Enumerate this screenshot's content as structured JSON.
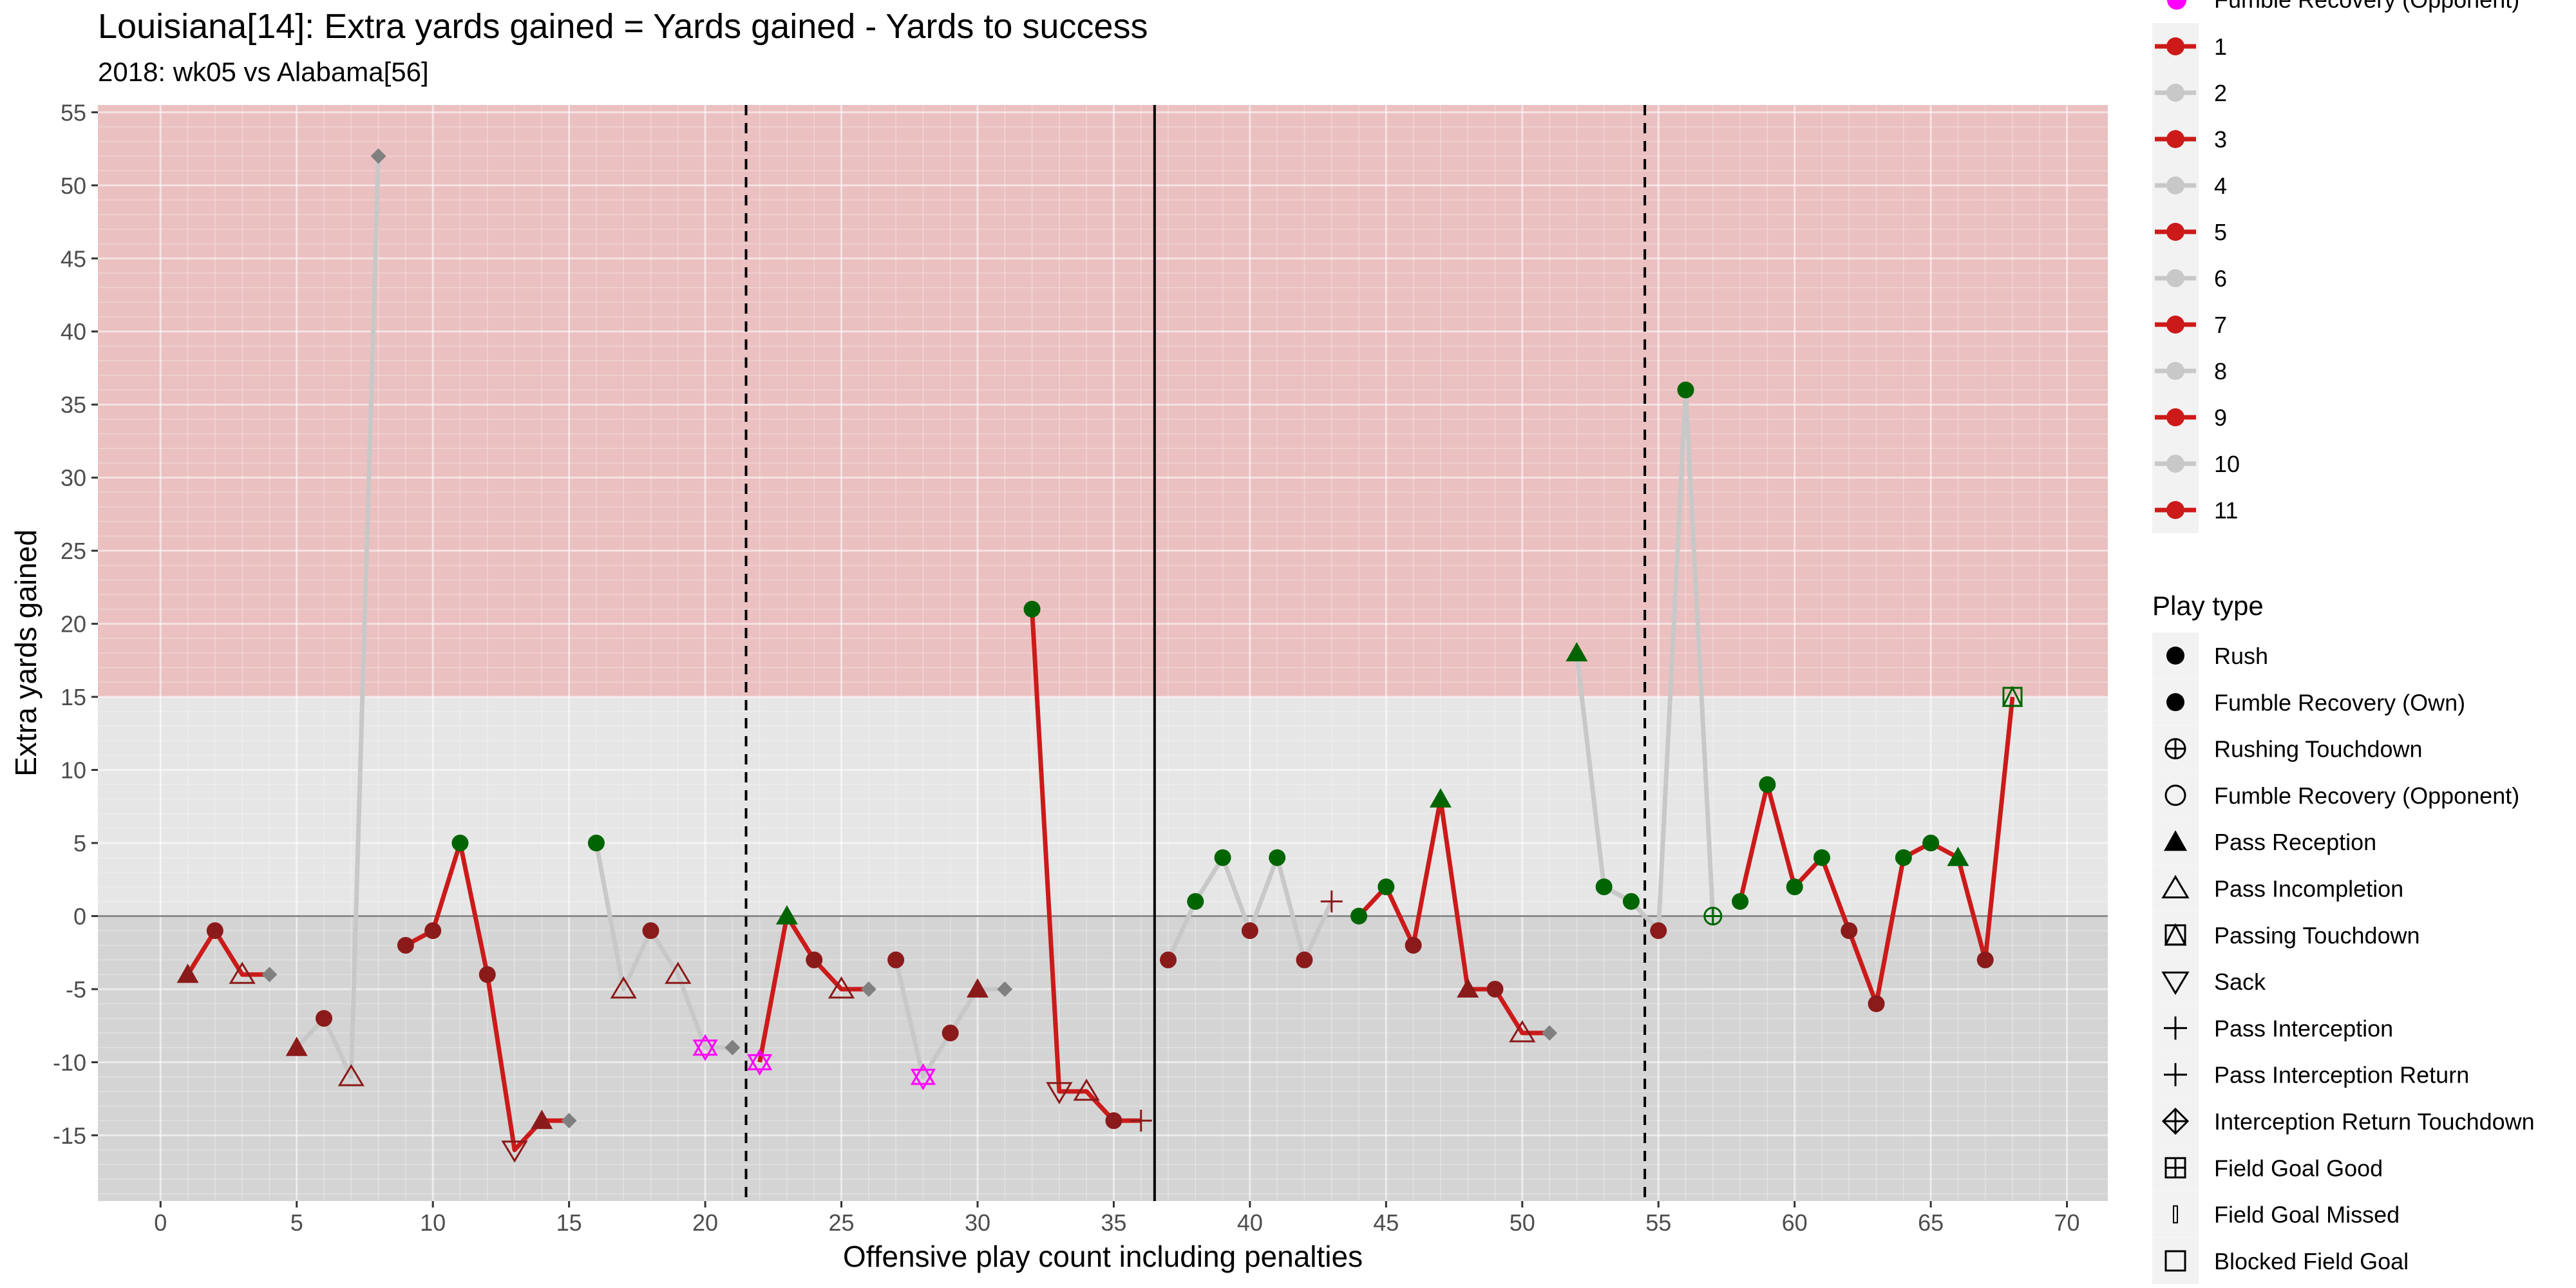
{
  "chart_data": {
    "type": "line",
    "title": "Louisiana[14]: Extra yards gained = Yards gained - Yards to success",
    "subtitle": "2018: wk05 vs Alabama[56]",
    "xlabel": "Offensive play count including penalties",
    "ylabel": "Extra yards gained",
    "xlim": [
      -2.3,
      71.5
    ],
    "ylim": [
      -19.5,
      55.5
    ],
    "x_ticks": [
      0,
      5,
      10,
      15,
      20,
      25,
      30,
      35,
      40,
      45,
      50,
      55,
      60,
      65,
      70
    ],
    "y_ticks": [
      -15,
      -10,
      -5,
      0,
      5,
      10,
      15,
      20,
      25,
      30,
      35,
      40,
      45,
      50,
      55
    ],
    "success_band_min": 15,
    "zero_line": 0,
    "quarter_lines": [
      21.5,
      54.5
    ],
    "half_line": 36.5,
    "colors": {
      "success_band": "#ebc0c0",
      "failure_band": "#d4d4d4",
      "middle_band": "#e6e6e6",
      "drive_red": "#cc1a1a",
      "drive_grey": "#c8c8c8",
      "success": "#006400",
      "fail": "#8b1a1a",
      "penalty": "#808080",
      "sack_magenta": "#ff00ff"
    },
    "series": [
      {
        "drive": 1,
        "points": [
          [
            1,
            -4,
            "pass_rec",
            "fail"
          ],
          [
            2,
            -1,
            "rush",
            "fail"
          ],
          [
            3,
            -4,
            "pass_inc",
            "fail"
          ],
          [
            4,
            -4,
            "penalty",
            "penalty"
          ]
        ]
      },
      {
        "drive": 2,
        "points": [
          [
            5,
            -9,
            "pass_rec",
            "fail"
          ],
          [
            6,
            -7,
            "rush",
            "fail"
          ],
          [
            7,
            -11,
            "pass_inc",
            "fail"
          ],
          [
            8,
            52,
            "penalty",
            "penalty"
          ]
        ]
      },
      {
        "drive": 3,
        "points": [
          [
            9,
            -2,
            "rush",
            "fail"
          ],
          [
            10,
            -1,
            "rush",
            "fail"
          ],
          [
            11,
            5,
            "rush",
            "success"
          ],
          [
            12,
            -4,
            "rush",
            "fail"
          ],
          [
            13,
            -16,
            "sack",
            "fail"
          ],
          [
            14,
            -14,
            "pass_rec",
            "fail"
          ],
          [
            15,
            -14,
            "penalty",
            "penalty"
          ]
        ]
      },
      {
        "drive": 4,
        "points": [
          [
            16,
            5,
            "rush",
            "success"
          ],
          [
            17,
            -5,
            "pass_inc",
            "fail"
          ],
          [
            18,
            -1,
            "rush",
            "fail"
          ],
          [
            19,
            -4,
            "pass_inc",
            "fail"
          ],
          [
            20,
            -9,
            "sack_star",
            "sack_magenta"
          ],
          [
            21,
            -9,
            "penalty",
            "penalty"
          ]
        ]
      },
      {
        "drive": 5,
        "points": [
          [
            22,
            -10,
            "sack_star",
            "sack_magenta"
          ],
          [
            23,
            0,
            "pass_rec",
            "success"
          ],
          [
            24,
            -3,
            "rush",
            "fail"
          ],
          [
            25,
            -5,
            "pass_inc",
            "fail"
          ],
          [
            26,
            -5,
            "penalty",
            "penalty"
          ]
        ]
      },
      {
        "drive": 6,
        "points": [
          [
            27,
            -3,
            "rush",
            "fail"
          ],
          [
            28,
            -11,
            "sack_star",
            "sack_magenta"
          ],
          [
            29,
            -8,
            "rush",
            "fail"
          ],
          [
            30,
            -5,
            "pass_rec",
            "fail"
          ],
          [
            31,
            -5,
            "penalty",
            "penalty"
          ]
        ]
      },
      {
        "drive": 7,
        "points": [
          [
            32,
            21,
            "rush",
            "success"
          ],
          [
            33,
            -12,
            "sack",
            "fail"
          ],
          [
            34,
            -12,
            "pass_inc",
            "fail"
          ],
          [
            35,
            -14,
            "rush",
            "fail"
          ],
          [
            36,
            -14,
            "plus",
            "fail"
          ]
        ]
      },
      {
        "drive": 8,
        "points": [
          [
            37,
            -3,
            "rush",
            "fail"
          ],
          [
            38,
            1,
            "rush",
            "success"
          ],
          [
            39,
            4,
            "rush",
            "success"
          ],
          [
            40,
            -1,
            "rush",
            "fail"
          ],
          [
            41,
            4,
            "rush",
            "success"
          ],
          [
            42,
            -3,
            "rush",
            "fail"
          ],
          [
            43,
            1,
            "plus",
            "fail"
          ]
        ]
      },
      {
        "drive": 9,
        "points": [
          [
            44,
            0,
            "rush",
            "success"
          ],
          [
            45,
            2,
            "rush",
            "success"
          ],
          [
            46,
            -2,
            "rush",
            "fail"
          ],
          [
            47,
            8,
            "pass_rec",
            "success"
          ],
          [
            48,
            -5,
            "pass_rec",
            "fail"
          ],
          [
            49,
            -5,
            "rush",
            "fail"
          ],
          [
            50,
            -8,
            "pass_inc",
            "fail"
          ],
          [
            51,
            -8,
            "penalty",
            "penalty"
          ]
        ]
      },
      {
        "drive": 10,
        "points": [
          [
            52,
            18,
            "pass_rec",
            "success"
          ],
          [
            53,
            2,
            "rush",
            "success"
          ],
          [
            54,
            1,
            "rush",
            "success"
          ],
          [
            55,
            -1,
            "rush",
            "fail"
          ],
          [
            56,
            36,
            "rush",
            "success"
          ],
          [
            57,
            0,
            "rush_td",
            "success"
          ]
        ]
      },
      {
        "drive": 11,
        "points": [
          [
            58,
            1,
            "rush",
            "success"
          ],
          [
            59,
            9,
            "rush",
            "success"
          ],
          [
            60,
            2,
            "rush",
            "success"
          ],
          [
            61,
            4,
            "rush",
            "success"
          ],
          [
            62,
            -1,
            "rush",
            "fail"
          ],
          [
            63,
            -6,
            "rush",
            "fail"
          ],
          [
            64,
            4,
            "rush",
            "success"
          ],
          [
            65,
            5,
            "rush",
            "success"
          ],
          [
            66,
            4,
            "pass_rec",
            "success"
          ],
          [
            67,
            -3,
            "rush",
            "fail"
          ],
          [
            68,
            15,
            "pass_td",
            "success"
          ]
        ]
      }
    ],
    "legend_drives": {
      "partial_title": "Fumble Recovery (Opponent)",
      "items": [
        "1",
        "2",
        "3",
        "4",
        "5",
        "6",
        "7",
        "8",
        "9",
        "10",
        "11"
      ]
    },
    "legend_play_type": {
      "title": "Play type",
      "items": [
        {
          "label": "Rush",
          "icon": "filled-circle"
        },
        {
          "label": "Fumble Recovery (Own)",
          "icon": "filled-circle"
        },
        {
          "label": "Rushing Touchdown",
          "icon": "circle-plus"
        },
        {
          "label": "Fumble Recovery (Opponent)",
          "icon": "open-circle"
        },
        {
          "label": "Pass Reception",
          "icon": "filled-triangle"
        },
        {
          "label": "Pass Incompletion",
          "icon": "open-triangle"
        },
        {
          "label": "Passing Touchdown",
          "icon": "triangle-square"
        },
        {
          "label": "Sack",
          "icon": "open-triangle-down"
        },
        {
          "label": "Pass Interception",
          "icon": "plus"
        },
        {
          "label": "Pass Interception Return",
          "icon": "plus"
        },
        {
          "label": "Interception Return Touchdown",
          "icon": "diamond-plus"
        },
        {
          "label": "Field Goal Good",
          "icon": "square-plus"
        },
        {
          "label": "Field Goal Missed",
          "icon": "thin-rect"
        },
        {
          "label": "Blocked Field Goal",
          "icon": "open-square"
        }
      ]
    }
  }
}
